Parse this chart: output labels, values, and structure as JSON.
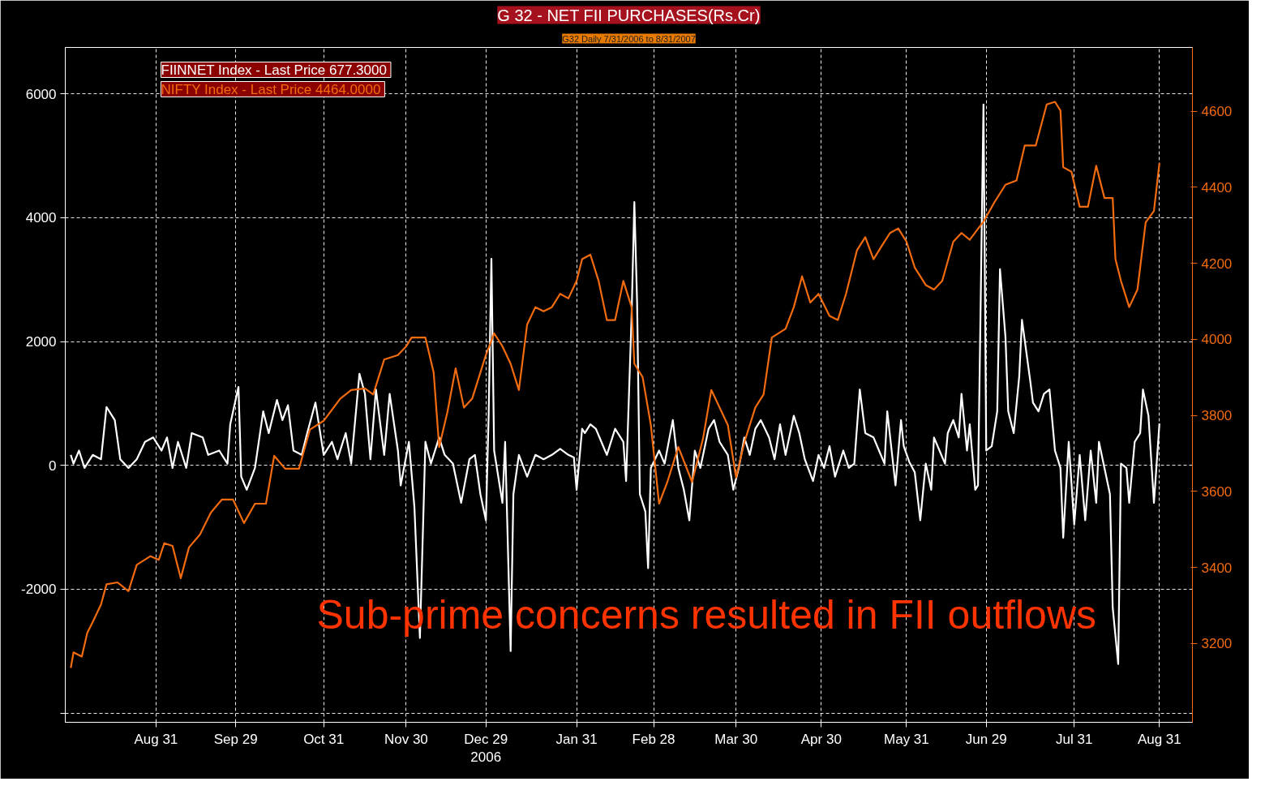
{
  "chart_data": {
    "type": "line",
    "title": "G 32 - NET FII PURCHASES(Rs.Cr)",
    "subtitle": "G32 Daily 7/31/2006 to 8/31/2007",
    "annotations": [
      "Sub-prime concerns resulted in FII outflows"
    ],
    "legend": "top left",
    "grid": true,
    "line_style": "solid",
    "xlim": [
      "2006-07-29",
      "2007-09-12"
    ],
    "xticks": [
      {
        "value": "2006-08-31",
        "label": "Aug 31"
      },
      {
        "value": "2006-09-29",
        "label": "Sep 29"
      },
      {
        "value": "2006-10-31",
        "label": "Oct 31"
      },
      {
        "value": "2006-11-30",
        "label": "Nov 30"
      },
      {
        "value": "2006-12-29",
        "label": "Dec 29\n2006"
      },
      {
        "value": "2007-01-31",
        "label": "Jan 31"
      },
      {
        "value": "2007-02-28",
        "label": "Feb 28"
      },
      {
        "value": "2007-03-30",
        "label": "Mar 30"
      },
      {
        "value": "2007-04-30",
        "label": "Apr 30"
      },
      {
        "value": "2007-05-31",
        "label": "May 31"
      },
      {
        "value": "2007-06-29",
        "label": "Jun 29"
      },
      {
        "value": "2007-07-31",
        "label": "Jul 31"
      },
      {
        "value": "2007-08-31",
        "label": "Aug 31"
      }
    ],
    "ylim": [
      -4150,
      6750
    ],
    "yticks": [
      {
        "value": -4000,
        "label": null
      },
      -2000,
      0,
      2000,
      4000,
      6000
    ],
    "y2lim": [
      2993,
      4768
    ],
    "y2ticks": [
      3200,
      3400,
      3600,
      3800,
      4000,
      4200,
      4400,
      4600
    ],
    "series": [
      {
        "name": "FIINNET Index - Last Price  677.3000",
        "color": "#ffffff",
        "x": [
          "2006-07-31",
          "2006-08-01",
          "2006-08-03",
          "2006-08-05",
          "2006-08-08",
          "2006-08-11",
          "2006-08-13",
          "2006-08-16",
          "2006-08-18",
          "2006-08-21",
          "2006-08-24",
          "2006-08-27",
          "2006-08-30",
          "2006-09-02",
          "2006-09-04",
          "2006-09-06",
          "2006-09-08",
          "2006-09-11",
          "2006-09-13",
          "2006-09-17",
          "2006-09-19",
          "2006-09-23",
          "2006-09-26",
          "2006-09-27",
          "2006-09-30",
          "2006-10-01",
          "2006-10-03",
          "2006-10-06",
          "2006-10-09",
          "2006-10-11",
          "2006-10-14",
          "2006-10-16",
          "2006-10-18",
          "2006-10-20",
          "2006-10-23",
          "2006-10-25",
          "2006-10-28",
          "2006-10-31",
          "2006-11-03",
          "2006-11-05",
          "2006-11-08",
          "2006-11-10",
          "2006-11-13",
          "2006-11-15",
          "2006-11-17",
          "2006-11-19",
          "2006-11-22",
          "2006-11-24",
          "2006-11-27",
          "2006-11-28",
          "2006-12-01",
          "2006-12-03",
          "2006-12-05",
          "2006-12-07",
          "2006-12-09",
          "2006-12-12",
          "2006-12-14",
          "2006-12-17",
          "2006-12-20",
          "2006-12-23",
          "2006-12-25",
          "2006-12-27",
          "2006-12-29",
          "2006-12-30",
          "2006-12-31",
          "2007-01-01",
          "2007-01-04",
          "2007-01-05",
          "2007-01-07",
          "2007-01-08",
          "2007-01-10",
          "2007-01-13",
          "2007-01-16",
          "2007-01-19",
          "2007-01-22",
          "2007-01-25",
          "2007-01-28",
          "2007-01-30",
          "2007-01-31",
          "2007-02-02",
          "2007-02-03",
          "2007-02-05",
          "2007-02-07",
          "2007-02-09",
          "2007-02-11",
          "2007-02-14",
          "2007-02-17",
          "2007-02-18",
          "2007-02-20",
          "2007-02-21",
          "2007-02-22",
          "2007-02-23",
          "2007-02-25",
          "2007-02-26",
          "2007-02-27",
          "2007-03-02",
          "2007-03-04",
          "2007-03-07",
          "2007-03-09",
          "2007-03-11",
          "2007-03-13",
          "2007-03-15",
          "2007-03-17",
          "2007-03-20",
          "2007-03-22",
          "2007-03-24",
          "2007-03-27",
          "2007-03-29",
          "2007-03-31",
          "2007-04-02",
          "2007-04-04",
          "2007-04-06",
          "2007-04-08",
          "2007-04-11",
          "2007-04-13",
          "2007-04-15",
          "2007-04-17",
          "2007-04-20",
          "2007-04-22",
          "2007-04-24",
          "2007-04-27",
          "2007-04-29",
          "2007-05-01",
          "2007-05-03",
          "2007-05-05",
          "2007-05-08",
          "2007-05-10",
          "2007-05-12",
          "2007-05-14",
          "2007-05-16",
          "2007-05-19",
          "2007-05-21",
          "2007-05-23",
          "2007-05-24",
          "2007-05-27",
          "2007-05-29",
          "2007-05-30",
          "2007-06-01",
          "2007-06-03",
          "2007-06-05",
          "2007-06-07",
          "2007-06-09",
          "2007-06-10",
          "2007-06-12",
          "2007-06-14",
          "2007-06-15",
          "2007-06-17",
          "2007-06-19",
          "2007-06-20",
          "2007-06-22",
          "2007-06-23",
          "2007-06-25",
          "2007-06-26",
          "2007-06-27",
          "2007-06-28",
          "2007-06-29",
          "2007-07-01",
          "2007-07-03",
          "2007-07-04",
          "2007-07-06",
          "2007-07-07",
          "2007-07-09",
          "2007-07-11",
          "2007-07-12",
          "2007-07-15",
          "2007-07-16",
          "2007-07-18",
          "2007-07-20",
          "2007-07-22",
          "2007-07-24",
          "2007-07-26",
          "2007-07-27",
          "2007-07-29",
          "2007-07-31",
          "2007-08-02",
          "2007-08-04",
          "2007-08-06",
          "2007-08-08",
          "2007-08-09",
          "2007-08-11",
          "2007-08-13",
          "2007-08-14",
          "2007-08-16",
          "2007-08-17",
          "2007-08-19",
          "2007-08-20",
          "2007-08-22",
          "2007-08-24",
          "2007-08-25",
          "2007-08-27",
          "2007-08-29",
          "2007-08-31"
        ],
        "values": [
          169,
          28,
          239,
          -42,
          169,
          99,
          943,
          732,
          99,
          -42,
          99,
          380,
          451,
          239,
          451,
          -42,
          380,
          -42,
          521,
          451,
          169,
          239,
          28,
          662,
          1267,
          -183,
          -394,
          -42,
          873,
          521,
          1056,
          732,
          972,
          239,
          169,
          521,
          1014,
          169,
          380,
          99,
          521,
          28,
          1478,
          1155,
          99,
          1225,
          169,
          1155,
          239,
          -324,
          380,
          -676,
          -2788,
          380,
          28,
          451,
          169,
          28,
          -605,
          99,
          169,
          -465,
          -887,
          802,
          3337,
          239,
          -605,
          380,
          -2999,
          -465,
          169,
          -183,
          169,
          99,
          169,
          267,
          169,
          127,
          -394,
          591,
          521,
          662,
          591,
          380,
          169,
          591,
          380,
          -253,
          2422,
          4252,
          2633,
          -465,
          -746,
          -1661,
          -42,
          239,
          28,
          732,
          -42,
          -394,
          -887,
          239,
          -42,
          591,
          732,
          380,
          169,
          -394,
          -42,
          451,
          169,
          591,
          732,
          451,
          99,
          662,
          169,
          802,
          521,
          99,
          -253,
          169,
          -42,
          310,
          -183,
          239,
          -42,
          28,
          1225,
          521,
          451,
          239,
          28,
          873,
          -324,
          732,
          310,
          56,
          -113,
          -887,
          28,
          -394,
          451,
          239,
          28,
          521,
          732,
          451,
          1155,
          239,
          662,
          -394,
          -324,
          2703,
          5829,
          239,
          310,
          873,
          3168,
          2070,
          873,
          521,
          1436,
          2351,
          1366,
          1014,
          873,
          1155,
          1225,
          239,
          -42,
          -1169,
          380,
          -957,
          169,
          -887,
          239,
          -605,
          380,
          -42,
          -465,
          -2295,
          -3210,
          28,
          -42,
          -605,
          380,
          521,
          1225,
          802,
          -605,
          677
        ]
      },
      {
        "name": "NIFTY Index - Last Price  4464.0000",
        "color": "#f26b0f",
        "axis": "y2",
        "x": [
          "2006-07-31",
          "2006-08-01",
          "2006-08-04",
          "2006-08-06",
          "2006-08-08",
          "2006-08-11",
          "2006-08-13",
          "2006-08-17",
          "2006-08-21",
          "2006-08-24",
          "2006-08-29",
          "2006-09-01",
          "2006-09-03",
          "2006-09-06",
          "2006-09-09",
          "2006-09-12",
          "2006-09-16",
          "2006-09-20",
          "2006-09-24",
          "2006-09-28",
          "2006-10-02",
          "2006-10-06",
          "2006-10-10",
          "2006-10-13",
          "2006-10-17",
          "2006-10-22",
          "2006-10-26",
          "2006-10-31",
          "2006-11-06",
          "2006-11-10",
          "2006-11-15",
          "2006-11-18",
          "2006-11-22",
          "2006-11-27",
          "2006-11-30",
          "2006-12-02",
          "2006-12-07",
          "2006-12-10",
          "2006-12-12",
          "2006-12-15",
          "2006-12-18",
          "2006-12-21",
          "2006-12-24",
          "2006-12-29",
          "2007-01-01",
          "2007-01-04",
          "2007-01-07",
          "2007-01-10",
          "2007-01-13",
          "2007-01-16",
          "2007-01-19",
          "2007-01-22",
          "2007-01-25",
          "2007-01-28",
          "2007-01-31",
          "2007-02-02",
          "2007-02-05",
          "2007-02-08",
          "2007-02-11",
          "2007-02-14",
          "2007-02-17",
          "2007-02-20",
          "2007-02-21",
          "2007-02-24",
          "2007-02-27",
          "2007-03-02",
          "2007-03-05",
          "2007-03-09",
          "2007-03-14",
          "2007-03-18",
          "2007-03-21",
          "2007-03-24",
          "2007-03-27",
          "2007-03-30",
          "2007-04-02",
          "2007-04-06",
          "2007-04-09",
          "2007-04-12",
          "2007-04-17",
          "2007-04-20",
          "2007-04-23",
          "2007-04-26",
          "2007-04-29",
          "2007-05-03",
          "2007-05-06",
          "2007-05-09",
          "2007-05-13",
          "2007-05-16",
          "2007-05-19",
          "2007-05-22",
          "2007-05-25",
          "2007-05-28",
          "2007-05-31",
          "2007-06-03",
          "2007-06-07",
          "2007-06-10",
          "2007-06-13",
          "2007-06-17",
          "2007-06-20",
          "2007-06-23",
          "2007-06-28",
          "2007-07-02",
          "2007-07-06",
          "2007-07-10",
          "2007-07-13",
          "2007-07-17",
          "2007-07-21",
          "2007-07-24",
          "2007-07-26",
          "2007-07-27",
          "2007-07-30",
          "2007-08-02",
          "2007-08-05",
          "2007-08-08",
          "2007-08-11",
          "2007-08-14",
          "2007-08-15",
          "2007-08-17",
          "2007-08-20",
          "2007-08-23",
          "2007-08-26",
          "2007-08-29",
          "2007-08-31"
        ],
        "values": [
          3136,
          3177,
          3166,
          3228,
          3257,
          3303,
          3356,
          3361,
          3338,
          3407,
          3430,
          3420,
          3464,
          3457,
          3372,
          3453,
          3487,
          3545,
          3579,
          3579,
          3517,
          3568,
          3568,
          3694,
          3660,
          3660,
          3763,
          3786,
          3844,
          3867,
          3871,
          3855,
          3947,
          3959,
          3982,
          4005,
          4005,
          3913,
          3717,
          3809,
          3924,
          3821,
          3844,
          3959,
          4016,
          3982,
          3936,
          3867,
          4039,
          4085,
          4074,
          4085,
          4120,
          4108,
          4154,
          4211,
          4223,
          4154,
          4051,
          4051,
          4154,
          4085,
          3936,
          3901,
          3775,
          3568,
          3625,
          3717,
          3625,
          3740,
          3867,
          3821,
          3775,
          3637,
          3729,
          3821,
          3855,
          4005,
          4028,
          4085,
          4166,
          4097,
          4120,
          4062,
          4051,
          4120,
          4235,
          4269,
          4211,
          4246,
          4280,
          4292,
          4257,
          4189,
          4143,
          4131,
          4154,
          4257,
          4280,
          4262,
          4310,
          4361,
          4407,
          4418,
          4510,
          4510,
          4618,
          4625,
          4602,
          4453,
          4441,
          4349,
          4349,
          4457,
          4372,
          4372,
          4211,
          4154,
          4085,
          4131,
          4308,
          4338,
          4464
        ]
      }
    ]
  }
}
